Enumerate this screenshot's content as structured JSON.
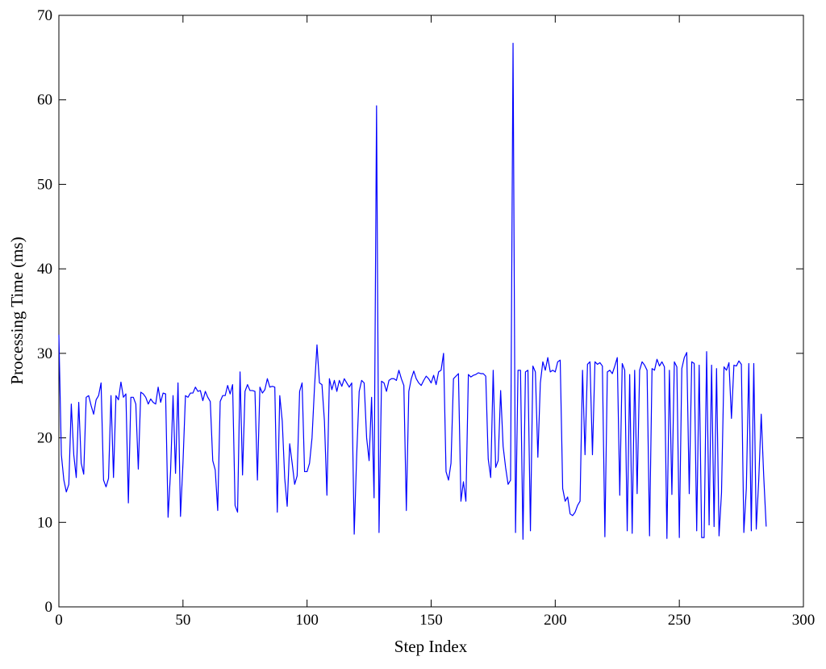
{
  "chart_data": {
    "type": "line",
    "xlabel": "Step Index",
    "ylabel": "Processing Time (ms)",
    "color": "#0000ff",
    "grid": false,
    "xlim": [
      0,
      300
    ],
    "xticks": [
      0,
      50,
      100,
      150,
      200,
      250,
      300
    ],
    "ylim": [
      0,
      70
    ],
    "yticks": [
      0,
      10,
      20,
      30,
      40,
      50,
      60,
      70
    ],
    "x": [
      0,
      1,
      2,
      3,
      4,
      5,
      6,
      7,
      8,
      9,
      10,
      11,
      12,
      13,
      14,
      15,
      16,
      17,
      18,
      19,
      20,
      21,
      22,
      23,
      24,
      25,
      26,
      27,
      28,
      29,
      30,
      31,
      32,
      33,
      34,
      35,
      36,
      37,
      38,
      39,
      40,
      41,
      42,
      43,
      44,
      45,
      46,
      47,
      48,
      49,
      50,
      51,
      52,
      53,
      54,
      55,
      56,
      57,
      58,
      59,
      60,
      61,
      62,
      63,
      64,
      65,
      66,
      67,
      68,
      69,
      70,
      71,
      72,
      73,
      74,
      75,
      76,
      77,
      78,
      79,
      80,
      81,
      82,
      83,
      84,
      85,
      86,
      87,
      88,
      89,
      90,
      91,
      92,
      93,
      94,
      95,
      96,
      97,
      98,
      99,
      100,
      101,
      102,
      103,
      104,
      105,
      106,
      107,
      108,
      109,
      110,
      111,
      112,
      113,
      114,
      115,
      116,
      117,
      118,
      119,
      120,
      121,
      122,
      123,
      124,
      125,
      126,
      127,
      128,
      129,
      130,
      131,
      132,
      133,
      134,
      135,
      136,
      137,
      138,
      139,
      140,
      141,
      142,
      143,
      144,
      145,
      146,
      147,
      148,
      149,
      150,
      151,
      152,
      153,
      154,
      155,
      156,
      157,
      158,
      159,
      160,
      161,
      162,
      163,
      164,
      165,
      166,
      167,
      168,
      169,
      170,
      171,
      172,
      173,
      174,
      175,
      176,
      177,
      178,
      179,
      180,
      181,
      182,
      183,
      184,
      185,
      186,
      187,
      188,
      189,
      190,
      191,
      192,
      193,
      194,
      195,
      196,
      197,
      198,
      199,
      200,
      201,
      202,
      203,
      204,
      205,
      206,
      207,
      208,
      209,
      210,
      211,
      212,
      213,
      214,
      215,
      216,
      217,
      218,
      219,
      220,
      221,
      222,
      223,
      224,
      225,
      226,
      227,
      228,
      229,
      230,
      231,
      232,
      233,
      234,
      235,
      236,
      237,
      238,
      239,
      240,
      241,
      242,
      243,
      244,
      245,
      246,
      247,
      248,
      249,
      250,
      251,
      252,
      253,
      254,
      255,
      256,
      257,
      258,
      259,
      260,
      261,
      262,
      263,
      264,
      265,
      266,
      267,
      268,
      269,
      270,
      271,
      272,
      273,
      274,
      275,
      276,
      277,
      278,
      279,
      280,
      281,
      282,
      283,
      284,
      285
    ],
    "values": [
      32.2,
      18,
      15,
      13.6,
      14.5,
      24,
      18,
      15.3,
      24.2,
      17,
      15.7,
      24.8,
      25,
      23.8,
      22.8,
      24.5,
      25,
      26.5,
      15,
      14.2,
      15.2,
      25,
      15.3,
      25,
      24.5,
      26.6,
      24.8,
      25.2,
      12.3,
      24.8,
      24.8,
      24,
      16.3,
      25.4,
      25.2,
      24.8,
      24,
      24.6,
      24.2,
      24,
      26,
      24.2,
      25.3,
      25.2,
      10.6,
      16,
      25,
      15.8,
      26.5,
      10.7,
      17,
      25,
      24.8,
      25.3,
      25.3,
      26,
      25.5,
      25.6,
      24.4,
      25.5,
      24.8,
      24.3,
      17.3,
      16.2,
      11.4,
      24.3,
      25,
      25,
      26.2,
      25.2,
      26.3,
      12,
      11.2,
      27.8,
      15.6,
      25.5,
      26.3,
      25.6,
      25.6,
      25.5,
      15,
      26,
      25.3,
      25.7,
      27,
      26,
      26.1,
      26,
      11.2,
      25,
      22,
      15.2,
      11.9,
      19.3,
      17,
      14.5,
      15.5,
      25.5,
      26.5,
      16,
      16,
      17,
      20,
      26,
      31,
      26.5,
      26.3,
      22,
      13.2,
      27,
      25.7,
      26.8,
      25.5,
      26.8,
      26.1,
      27,
      26.5,
      26,
      26.5,
      8.6,
      18,
      25.5,
      26.8,
      26.5,
      20,
      17.3,
      24.8,
      12.9,
      59.3,
      8.8,
      26.7,
      26.5,
      25.5,
      26.8,
      27,
      27,
      26.8,
      28,
      27,
      26.2,
      11.4,
      25.5,
      27,
      27.9,
      27,
      26.5,
      26.2,
      26.8,
      27.3,
      27,
      26.5,
      27.4,
      26.3,
      27.8,
      28,
      30,
      16,
      15,
      17,
      27,
      27.3,
      27.6,
      12.5,
      14.8,
      12.5,
      27.5,
      27.2,
      27.4,
      27.5,
      27.7,
      27.6,
      27.6,
      27.3,
      17.5,
      15.3,
      28,
      16.5,
      17.3,
      25.6,
      19,
      16.5,
      14.5,
      15,
      66.7,
      8.8,
      28,
      28,
      8,
      27.8,
      28,
      9,
      28.5,
      27.8,
      17.7,
      26.5,
      29,
      28,
      29.5,
      27.8,
      28,
      27.8,
      29,
      29.2,
      14,
      12.5,
      13,
      11,
      10.8,
      11.2,
      12,
      12.5,
      28,
      18,
      28.7,
      29,
      18,
      29,
      28.7,
      28.9,
      28.5,
      8.3,
      27.8,
      28,
      27.6,
      28.5,
      29.5,
      13.2,
      28.8,
      28,
      9,
      27.5,
      8.7,
      28,
      13.4,
      28,
      29,
      28.6,
      28,
      8.4,
      28.2,
      28,
      29.3,
      28.5,
      29,
      28.4,
      8.1,
      28,
      13.3,
      29,
      28.4,
      8.2,
      28.2,
      29.5,
      30.1,
      13.4,
      29,
      28.8,
      9,
      28.6,
      8.2,
      8.2,
      30.2,
      9.7,
      28.6,
      9.5,
      28.2,
      8.4,
      13.5,
      28.4,
      28,
      28.9,
      22.3,
      28.6,
      28.5,
      29.1,
      28.7,
      8.8,
      14,
      28.8,
      9,
      28.8,
      9.2,
      15,
      22.8,
      15.5,
      9.5
    ]
  }
}
